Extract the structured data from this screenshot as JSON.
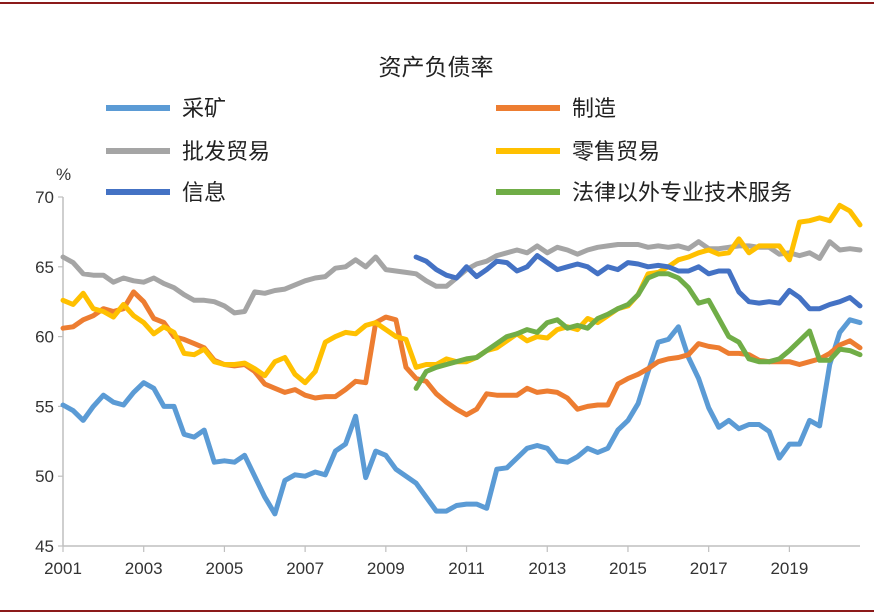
{
  "chart_data": {
    "type": "line",
    "title": "资产负债率",
    "ylabel": "%",
    "ylim": [
      45,
      70
    ],
    "yticks": [
      "45",
      "50",
      "55",
      "60",
      "65",
      "70"
    ],
    "xlim": [
      2001,
      2020.75
    ],
    "xticks": [
      "2001",
      "2003",
      "2005",
      "2007",
      "2009",
      "2011",
      "2013",
      "2015",
      "2017",
      "2019"
    ],
    "grid": false,
    "legend_position": "top",
    "series": [
      {
        "name": "采矿",
        "color": "#5B9BD5",
        "x": [
          2001.0,
          2001.25,
          2001.5,
          2001.75,
          2002.0,
          2002.25,
          2002.5,
          2002.75,
          2003.0,
          2003.25,
          2003.5,
          2003.75,
          2004.0,
          2004.25,
          2004.5,
          2004.75,
          2005.0,
          2005.25,
          2005.5,
          2005.75,
          2006.0,
          2006.25,
          2006.5,
          2006.75,
          2007.0,
          2007.25,
          2007.5,
          2007.75,
          2008.0,
          2008.25,
          2008.5,
          2008.75,
          2009.0,
          2009.25,
          2009.5,
          2009.75,
          2010.0,
          2010.25,
          2010.5,
          2010.75,
          2011.0,
          2011.25,
          2011.5,
          2011.75,
          2012.0,
          2012.25,
          2012.5,
          2012.75,
          2013.0,
          2013.25,
          2013.5,
          2013.75,
          2014.0,
          2014.25,
          2014.5,
          2014.75,
          2015.0,
          2015.25,
          2015.5,
          2015.75,
          2016.0,
          2016.25,
          2016.5,
          2016.75,
          2017.0,
          2017.25,
          2017.5,
          2017.75,
          2018.0,
          2018.25,
          2018.5,
          2018.75,
          2019.0,
          2019.25,
          2019.5,
          2019.75,
          2020.0,
          2020.25,
          2020.5,
          2020.75
        ],
        "values": [
          55.1,
          54.7,
          54.0,
          55.0,
          55.8,
          55.3,
          55.1,
          56.0,
          56.7,
          56.3,
          55.0,
          55.0,
          53.0,
          52.8,
          53.3,
          51.0,
          51.1,
          51.0,
          51.5,
          50.0,
          48.5,
          47.3,
          49.7,
          50.1,
          50.0,
          50.3,
          50.1,
          51.8,
          52.3,
          54.3,
          49.9,
          51.8,
          51.5,
          50.5,
          50.0,
          49.5,
          48.5,
          47.5,
          47.5,
          47.9,
          48.0,
          48.0,
          47.7,
          50.5,
          50.6,
          51.3,
          52.0,
          52.2,
          52.0,
          51.1,
          51.0,
          51.4,
          52.0,
          51.7,
          52.0,
          53.3,
          54.0,
          55.2,
          57.5,
          59.6,
          59.8,
          60.7,
          58.5,
          57.0,
          54.9,
          53.5,
          54.0,
          53.4,
          53.7,
          53.7,
          53.2,
          51.3,
          52.3,
          52.3,
          54.0,
          53.6,
          58.0,
          60.3,
          61.2,
          61.0
        ]
      },
      {
        "name": "制造",
        "color": "#ED7D31",
        "x": [
          2001.0,
          2001.25,
          2001.5,
          2001.75,
          2002.0,
          2002.25,
          2002.5,
          2002.75,
          2003.0,
          2003.25,
          2003.5,
          2003.75,
          2004.0,
          2004.25,
          2004.5,
          2004.75,
          2005.0,
          2005.25,
          2005.5,
          2005.75,
          2006.0,
          2006.25,
          2006.5,
          2006.75,
          2007.0,
          2007.25,
          2007.5,
          2007.75,
          2008.0,
          2008.25,
          2008.5,
          2008.75,
          2009.0,
          2009.25,
          2009.5,
          2009.75,
          2010.0,
          2010.25,
          2010.5,
          2010.75,
          2011.0,
          2011.25,
          2011.5,
          2011.75,
          2012.0,
          2012.25,
          2012.5,
          2012.75,
          2013.0,
          2013.25,
          2013.5,
          2013.75,
          2014.0,
          2014.25,
          2014.5,
          2014.75,
          2015.0,
          2015.25,
          2015.5,
          2015.75,
          2016.0,
          2016.25,
          2016.5,
          2016.75,
          2017.0,
          2017.25,
          2017.5,
          2017.75,
          2018.0,
          2018.25,
          2018.5,
          2018.75,
          2019.0,
          2019.25,
          2019.5,
          2019.75,
          2020.0,
          2020.25,
          2020.5,
          2020.75
        ],
        "values": [
          60.6,
          60.7,
          61.2,
          61.5,
          62.0,
          61.8,
          62.0,
          63.2,
          62.5,
          61.3,
          61.0,
          60.0,
          59.8,
          59.5,
          59.2,
          58.3,
          58.0,
          57.9,
          58.0,
          57.5,
          56.6,
          56.3,
          56.0,
          56.2,
          55.8,
          55.6,
          55.7,
          55.7,
          56.2,
          56.8,
          56.7,
          61.0,
          61.4,
          61.2,
          57.8,
          57.0,
          56.8,
          55.9,
          55.3,
          54.8,
          54.4,
          54.8,
          55.9,
          55.8,
          55.8,
          55.8,
          56.3,
          56.0,
          56.1,
          56.0,
          55.6,
          54.8,
          55.0,
          55.1,
          55.1,
          56.6,
          57.0,
          57.3,
          57.7,
          58.2,
          58.4,
          58.5,
          58.7,
          59.5,
          59.3,
          59.2,
          58.8,
          58.8,
          58.7,
          58.3,
          58.2,
          58.2,
          58.2,
          58.0,
          58.2,
          58.4,
          58.8,
          59.4,
          59.7,
          59.2
        ]
      },
      {
        "name": "批发贸易",
        "color": "#A5A5A5",
        "x": [
          2001.0,
          2001.25,
          2001.5,
          2001.75,
          2002.0,
          2002.25,
          2002.5,
          2002.75,
          2003.0,
          2003.25,
          2003.5,
          2003.75,
          2004.0,
          2004.25,
          2004.5,
          2004.75,
          2005.0,
          2005.25,
          2005.5,
          2005.75,
          2006.0,
          2006.25,
          2006.5,
          2006.75,
          2007.0,
          2007.25,
          2007.5,
          2007.75,
          2008.0,
          2008.25,
          2008.5,
          2008.75,
          2009.0,
          2009.25,
          2009.5,
          2009.75,
          2010.0,
          2010.25,
          2010.5,
          2010.75,
          2011.0,
          2011.25,
          2011.5,
          2011.75,
          2012.0,
          2012.25,
          2012.5,
          2012.75,
          2013.0,
          2013.25,
          2013.5,
          2013.75,
          2014.0,
          2014.25,
          2014.5,
          2014.75,
          2015.0,
          2015.25,
          2015.5,
          2015.75,
          2016.0,
          2016.25,
          2016.5,
          2016.75,
          2017.0,
          2017.25,
          2017.5,
          2017.75,
          2018.0,
          2018.25,
          2018.5,
          2018.75,
          2019.0,
          2019.25,
          2019.5,
          2019.75,
          2020.0,
          2020.25,
          2020.5,
          2020.75
        ],
        "values": [
          65.7,
          65.3,
          64.5,
          64.4,
          64.4,
          63.9,
          64.2,
          64.0,
          63.9,
          64.2,
          63.8,
          63.5,
          63.0,
          62.6,
          62.6,
          62.5,
          62.2,
          61.7,
          61.8,
          63.2,
          63.1,
          63.3,
          63.4,
          63.7,
          64.0,
          64.2,
          64.3,
          64.9,
          65.0,
          65.5,
          65.0,
          65.7,
          64.8,
          64.7,
          64.6,
          64.5,
          64.0,
          63.6,
          63.6,
          64.2,
          64.8,
          65.2,
          65.4,
          65.8,
          66.0,
          66.2,
          66.0,
          66.5,
          66.0,
          66.4,
          66.2,
          65.9,
          66.2,
          66.4,
          66.5,
          66.6,
          66.6,
          66.6,
          66.4,
          66.5,
          66.4,
          66.5,
          66.3,
          66.8,
          66.3,
          66.3,
          66.4,
          66.5,
          66.5,
          66.4,
          66.4,
          65.9,
          66.0,
          65.8,
          66.0,
          65.6,
          66.8,
          66.2,
          66.3,
          66.2
        ]
      },
      {
        "name": "零售贸易",
        "color": "#FFC000",
        "x": [
          2001.0,
          2001.25,
          2001.5,
          2001.75,
          2002.0,
          2002.25,
          2002.5,
          2002.75,
          2003.0,
          2003.25,
          2003.5,
          2003.75,
          2004.0,
          2004.25,
          2004.5,
          2004.75,
          2005.0,
          2005.25,
          2005.5,
          2005.75,
          2006.0,
          2006.25,
          2006.5,
          2006.75,
          2007.0,
          2007.25,
          2007.5,
          2007.75,
          2008.0,
          2008.25,
          2008.5,
          2008.75,
          2009.0,
          2009.25,
          2009.5,
          2009.75,
          2010.0,
          2010.25,
          2010.5,
          2010.75,
          2011.0,
          2011.25,
          2011.5,
          2011.75,
          2012.0,
          2012.25,
          2012.5,
          2012.75,
          2013.0,
          2013.25,
          2013.5,
          2013.75,
          2014.0,
          2014.25,
          2014.5,
          2014.75,
          2015.0,
          2015.25,
          2015.5,
          2015.75,
          2016.0,
          2016.25,
          2016.5,
          2016.75,
          2017.0,
          2017.25,
          2017.5,
          2017.75,
          2018.0,
          2018.25,
          2018.5,
          2018.75,
          2019.0,
          2019.25,
          2019.5,
          2019.75,
          2020.0,
          2020.25,
          2020.5,
          2020.75
        ],
        "values": [
          62.6,
          62.3,
          63.1,
          62.0,
          61.8,
          61.4,
          62.3,
          61.5,
          61.0,
          60.2,
          60.7,
          60.3,
          58.8,
          58.7,
          59.1,
          58.2,
          58.0,
          58.0,
          58.1,
          57.7,
          57.2,
          58.2,
          58.5,
          57.3,
          56.7,
          57.5,
          59.6,
          60.0,
          60.3,
          60.2,
          60.8,
          61.0,
          60.5,
          60.0,
          59.8,
          57.8,
          58.0,
          58.0,
          58.4,
          58.2,
          58.2,
          58.5,
          59.0,
          59.2,
          59.7,
          60.2,
          59.7,
          60.0,
          59.9,
          60.5,
          60.7,
          60.5,
          61.3,
          61.0,
          61.5,
          62.0,
          62.2,
          63.0,
          64.5,
          64.6,
          65.0,
          65.5,
          65.7,
          66.0,
          66.2,
          65.9,
          66.0,
          67.0,
          66.0,
          66.5,
          66.5,
          66.5,
          65.5,
          68.2,
          68.3,
          68.5,
          68.3,
          69.4,
          69.0,
          68.0
        ]
      },
      {
        "name": "信息",
        "color": "#4472C4",
        "x": [
          2009.75,
          2010.0,
          2010.25,
          2010.5,
          2010.75,
          2011.0,
          2011.25,
          2011.5,
          2011.75,
          2012.0,
          2012.25,
          2012.5,
          2012.75,
          2013.0,
          2013.25,
          2013.5,
          2013.75,
          2014.0,
          2014.25,
          2014.5,
          2014.75,
          2015.0,
          2015.25,
          2015.5,
          2015.75,
          2016.0,
          2016.25,
          2016.5,
          2016.75,
          2017.0,
          2017.25,
          2017.5,
          2017.75,
          2018.0,
          2018.25,
          2018.5,
          2018.75,
          2019.0,
          2019.25,
          2019.5,
          2019.75,
          2020.0,
          2020.25,
          2020.5,
          2020.75
        ],
        "values": [
          65.7,
          65.4,
          64.8,
          64.4,
          64.2,
          65.0,
          64.3,
          64.8,
          65.4,
          65.3,
          64.7,
          65.0,
          65.8,
          65.3,
          64.8,
          65.0,
          65.2,
          65.0,
          64.5,
          65.0,
          64.8,
          65.3,
          65.2,
          65.0,
          65.1,
          65.0,
          64.7,
          64.7,
          65.0,
          64.5,
          64.7,
          64.7,
          63.2,
          62.5,
          62.4,
          62.5,
          62.4,
          63.3,
          62.8,
          62.0,
          62.0,
          62.3,
          62.5,
          62.8,
          62.2
        ]
      },
      {
        "name": "法律以外专业技术服务",
        "color": "#70AD47",
        "x": [
          2009.75,
          2010.0,
          2010.25,
          2010.5,
          2010.75,
          2011.0,
          2011.25,
          2011.5,
          2011.75,
          2012.0,
          2012.25,
          2012.5,
          2012.75,
          2013.0,
          2013.25,
          2013.5,
          2013.75,
          2014.0,
          2014.25,
          2014.5,
          2014.75,
          2015.0,
          2015.25,
          2015.5,
          2015.75,
          2016.0,
          2016.25,
          2016.5,
          2016.75,
          2017.0,
          2017.25,
          2017.5,
          2017.75,
          2018.0,
          2018.25,
          2018.5,
          2018.75,
          2019.0,
          2019.25,
          2019.5,
          2019.75,
          2020.0,
          2020.25,
          2020.5,
          2020.75
        ],
        "values": [
          56.3,
          57.5,
          57.8,
          58.0,
          58.2,
          58.4,
          58.5,
          59.0,
          59.5,
          60.0,
          60.2,
          60.5,
          60.3,
          61.0,
          61.2,
          60.6,
          60.8,
          60.6,
          61.3,
          61.6,
          62.0,
          62.3,
          63.0,
          64.2,
          64.5,
          64.5,
          64.2,
          63.5,
          62.4,
          62.6,
          61.3,
          60.0,
          59.6,
          58.4,
          58.2,
          58.2,
          58.4,
          59.0,
          59.7,
          60.4,
          58.3,
          58.3,
          59.1,
          59.0,
          58.7
        ]
      }
    ]
  }
}
